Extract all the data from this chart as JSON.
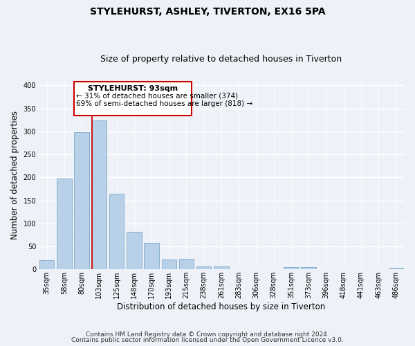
{
  "title": "STYLEHURST, ASHLEY, TIVERTON, EX16 5PA",
  "subtitle": "Size of property relative to detached houses in Tiverton",
  "xlabel": "Distribution of detached houses by size in Tiverton",
  "ylabel": "Number of detached properties",
  "bar_labels": [
    "35sqm",
    "58sqm",
    "80sqm",
    "103sqm",
    "125sqm",
    "148sqm",
    "170sqm",
    "193sqm",
    "215sqm",
    "238sqm",
    "261sqm",
    "283sqm",
    "306sqm",
    "328sqm",
    "351sqm",
    "373sqm",
    "396sqm",
    "418sqm",
    "441sqm",
    "463sqm",
    "486sqm"
  ],
  "bar_values": [
    20,
    197,
    298,
    324,
    165,
    81,
    57,
    21,
    23,
    7,
    6,
    0,
    0,
    0,
    5,
    5,
    0,
    0,
    0,
    0,
    3
  ],
  "bar_color": "#b8d0e8",
  "bar_edgecolor": "#7aaaca",
  "vline_color": "#cc0000",
  "annotation_title": "STYLEHURST: 93sqm",
  "annotation_line1": "← 31% of detached houses are smaller (374)",
  "annotation_line2": "69% of semi-detached houses are larger (818) →",
  "annotation_box_edgecolor": "#cc0000",
  "annotation_box_facecolor": "#ffffff",
  "footer_line1": "Contains HM Land Registry data © Crown copyright and database right 2024.",
  "footer_line2": "Contains public sector information licensed under the Open Government Licence v3.0.",
  "ylim": [
    0,
    410
  ],
  "yticks": [
    0,
    50,
    100,
    150,
    200,
    250,
    300,
    350,
    400
  ],
  "background_color": "#eef2f8",
  "plot_background": "#eef2f8",
  "grid_color": "#ffffff",
  "title_fontsize": 10,
  "subtitle_fontsize": 9,
  "axis_label_fontsize": 8.5,
  "tick_fontsize": 7,
  "footer_fontsize": 6.5,
  "ann_title_fontsize": 8,
  "ann_text_fontsize": 7.5,
  "vline_x_data": 2.575
}
